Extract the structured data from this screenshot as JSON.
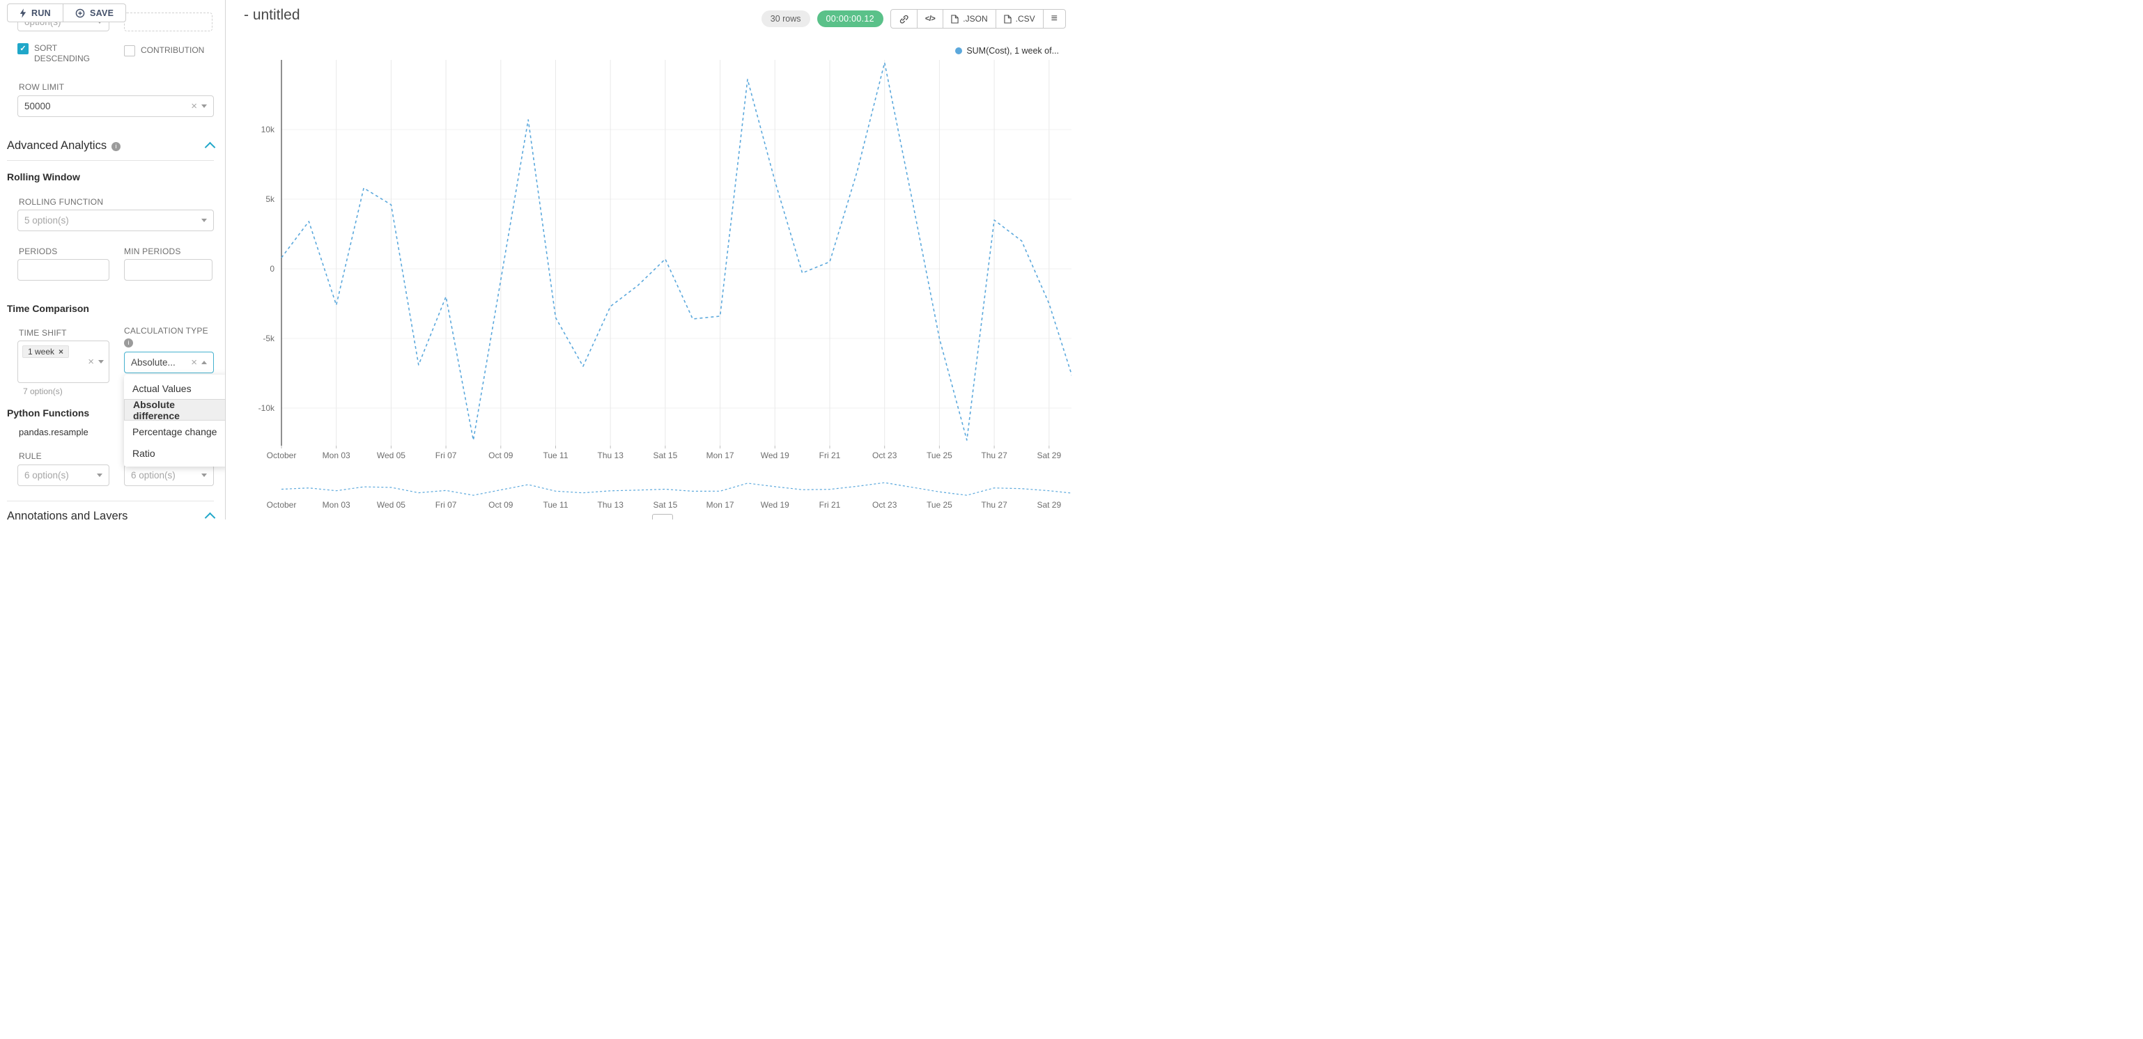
{
  "colors": {
    "primary": "#20a7c9",
    "line": "#5ba8dc",
    "timer_bg": "#5ac189"
  },
  "glyphs": {
    "check": "✓",
    "clear": "×",
    "info": "i"
  },
  "toolbar": {
    "run": "RUN",
    "save": "SAVE"
  },
  "panel": {
    "top_cut": {
      "left_value": "option(s)"
    },
    "sort_descending": {
      "label": "SORT DESCENDING",
      "checked": true
    },
    "contribution": {
      "label": "CONTRIBUTION",
      "checked": false
    },
    "row_limit": {
      "label": "ROW LIMIT",
      "value": "50000"
    },
    "advanced": {
      "title": "Advanced Analytics"
    },
    "rolling": {
      "title": "Rolling Window",
      "function_label": "ROLLING FUNCTION",
      "function_placeholder": "5 option(s)",
      "periods_label": "PERIODS",
      "min_periods_label": "MIN PERIODS"
    },
    "time_comparison": {
      "title": "Time Comparison",
      "time_shift_label": "TIME SHIFT",
      "tag": "1 week",
      "hint": "7 option(s)",
      "calc_label": "CALCULATION TYPE",
      "calc_value": "Absolute...",
      "options": [
        "Actual Values",
        "Absolute difference",
        "Percentage change",
        "Ratio"
      ],
      "selected": "Absolute difference"
    },
    "python": {
      "title": "Python Functions",
      "resample": "pandas.resample",
      "rule_label": "RULE",
      "rule_placeholder": "6 option(s)",
      "fill_placeholder": "6 option(s)"
    },
    "annotations": {
      "title": "Annotations and Layers"
    }
  },
  "header": {
    "title": "- untitled",
    "rows": "30 rows",
    "timer": "00:00:00.12",
    "json": ".JSON",
    "csv": ".CSV",
    "code_glyph": "</>",
    "menu_glyph": "≡"
  },
  "chart_data": {
    "type": "line",
    "line_style": "dashed",
    "color": "#5ba8dc",
    "grid": true,
    "legend": [
      "SUM(Cost), 1 week of..."
    ],
    "legend_position": "top-right",
    "x": [
      "Oct 01",
      "Oct 02",
      "Oct 03",
      "Oct 04",
      "Oct 05",
      "Oct 06",
      "Oct 07",
      "Oct 08",
      "Oct 09",
      "Oct 10",
      "Oct 11",
      "Oct 12",
      "Oct 13",
      "Oct 14",
      "Oct 15",
      "Oct 16",
      "Oct 17",
      "Oct 18",
      "Oct 19",
      "Oct 20",
      "Oct 21",
      "Oct 22",
      "Oct 23",
      "Oct 24",
      "Oct 25",
      "Oct 26",
      "Oct 27",
      "Oct 28",
      "Oct 29",
      "Oct 30"
    ],
    "series": [
      {
        "name": "SUM(Cost), 1 week of...",
        "values": [
          800,
          3400,
          -2600,
          5800,
          4600,
          -6900,
          -2000,
          -12300,
          -800,
          10700,
          -3500,
          -7000,
          -2700,
          -1200,
          700,
          -3600,
          -3400,
          13600,
          6300,
          -300,
          500,
          7000,
          14800,
          5000,
          -5000,
          -12300,
          3500,
          2000,
          -2500,
          -8700
        ]
      }
    ],
    "x_tick_labels": [
      "October",
      "Mon 03",
      "Wed 05",
      "Fri 07",
      "Oct 09",
      "Tue 11",
      "Thu 13",
      "Sat 15",
      "Mon 17",
      "Wed 19",
      "Fri 21",
      "Oct 23",
      "Tue 25",
      "Thu 27",
      "Sat 29"
    ],
    "y_tick_labels": [
      "10k",
      "5k",
      "0",
      "-5k",
      "-10k"
    ],
    "y_tick_values": [
      10000,
      5000,
      0,
      -5000,
      -10000
    ],
    "ylim": [
      -13000,
      15200
    ],
    "has_mini_preview": true
  }
}
